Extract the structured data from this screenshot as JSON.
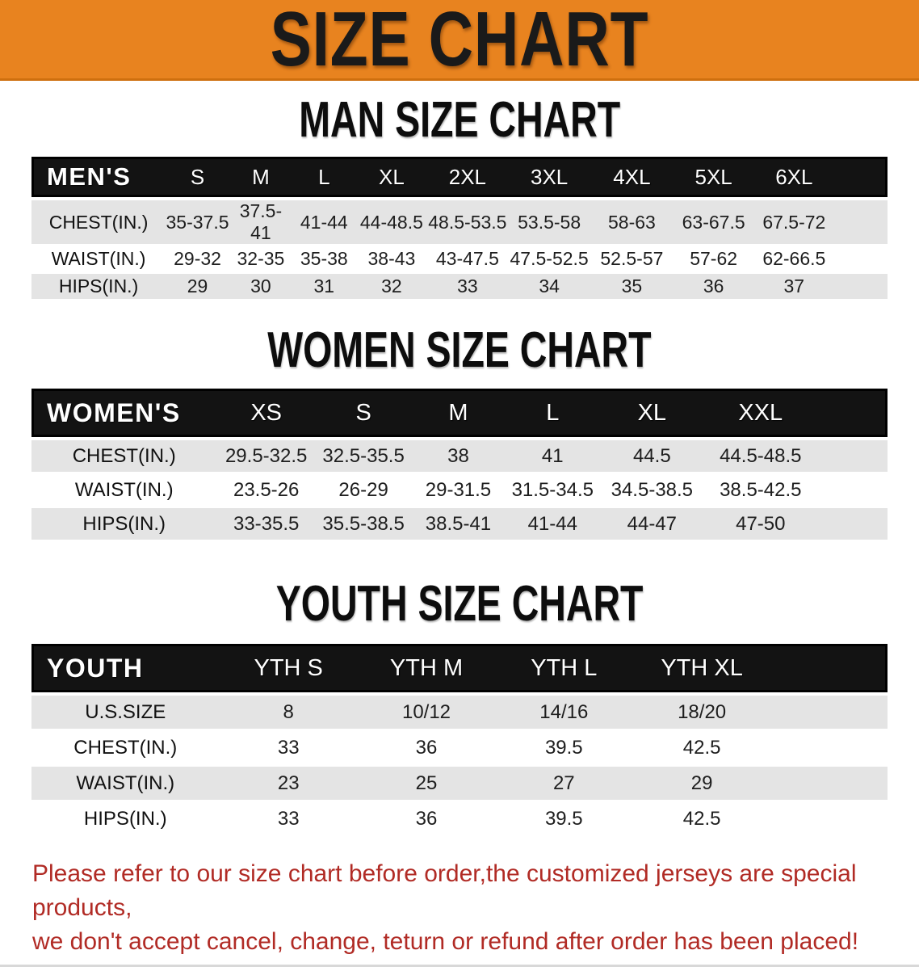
{
  "banner": {
    "title": "SIZE CHART"
  },
  "sections": {
    "men": {
      "heading": "MAN SIZE CHART",
      "table": {
        "label": "MEN'S",
        "sizes": [
          "S",
          "M",
          "L",
          "XL",
          "2XL",
          "3XL",
          "4XL",
          "5XL",
          "6XL"
        ],
        "rows": [
          {
            "label": "CHEST(IN.)",
            "values": [
              "35-37.5",
              "37.5-41",
              "41-44",
              "44-48.5",
              "48.5-53.5",
              "53.5-58",
              "58-63",
              "63-67.5",
              "67.5-72"
            ]
          },
          {
            "label": "WAIST(IN.)",
            "values": [
              "29-32",
              "32-35",
              "35-38",
              "38-43",
              "43-47.5",
              "47.5-52.5",
              "52.5-57",
              "57-62",
              "62-66.5"
            ]
          },
          {
            "label": "HIPS(IN.)",
            "values": [
              "29",
              "30",
              "31",
              "32",
              "33",
              "34",
              "35",
              "36",
              "37"
            ]
          }
        ]
      }
    },
    "women": {
      "heading": "WOMEN SIZE CHART",
      "table": {
        "label": "WOMEN'S",
        "sizes": [
          "XS",
          "S",
          "M",
          "L",
          "XL",
          "XXL"
        ],
        "rows": [
          {
            "label": "CHEST(IN.)",
            "values": [
              "29.5-32.5",
              "32.5-35.5",
              "38",
              "41",
              "44.5",
              "44.5-48.5"
            ]
          },
          {
            "label": "WAIST(IN.)",
            "values": [
              "23.5-26",
              "26-29",
              "29-31.5",
              "31.5-34.5",
              "34.5-38.5",
              "38.5-42.5"
            ]
          },
          {
            "label": "HIPS(IN.)",
            "values": [
              "33-35.5",
              "35.5-38.5",
              "38.5-41",
              "41-44",
              "44-47",
              "47-50"
            ]
          }
        ]
      }
    },
    "youth": {
      "heading": "YOUTH SIZE CHART",
      "table": {
        "label": "YOUTH",
        "sizes": [
          "YTH S",
          "YTH M",
          "YTH L",
          "YTH XL"
        ],
        "rows": [
          {
            "label": "U.S.SIZE",
            "values": [
              "8",
              "10/12",
              "14/16",
              "18/20"
            ]
          },
          {
            "label": "CHEST(IN.)",
            "values": [
              "33",
              "36",
              "39.5",
              "42.5"
            ]
          },
          {
            "label": "WAIST(IN.)",
            "values": [
              "23",
              "25",
              "27",
              "29"
            ]
          },
          {
            "label": "HIPS(IN.)",
            "values": [
              "33",
              "36",
              "39.5",
              "42.5"
            ]
          }
        ]
      }
    }
  },
  "notice": {
    "line1": "Please refer to our size chart before order,the customized jerseys are special products,",
    "line2": "we don't accept cancel, change, teturn or refund after order has been placed!"
  },
  "colors": {
    "banner_orange": "#E8831F",
    "banner_edge": "#CE6F0E",
    "header_band_black": "#131313",
    "row_stripe_gray": "#E4E4E4",
    "notice_red": "#B12B25",
    "bottom_divider_gray": "#D8D8D8"
  }
}
